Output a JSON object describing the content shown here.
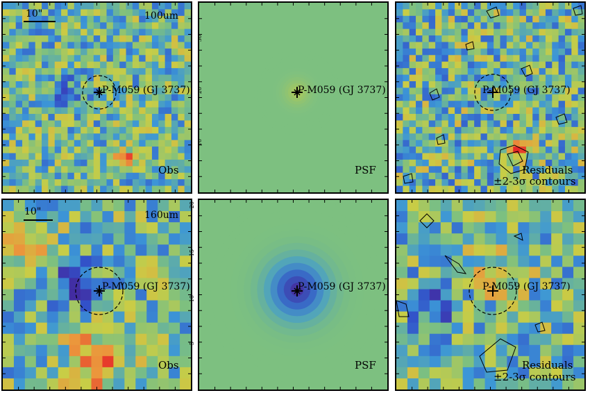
{
  "figure": {
    "source_name": "P-M059 (GJ 3737)",
    "scale_label": "10\"",
    "rows": [
      {
        "band": "100um",
        "panels": [
          {
            "kind": "obs",
            "label": "Obs"
          },
          {
            "kind": "psf",
            "label": "PSF"
          },
          {
            "kind": "residual",
            "label": "Residuals",
            "sublabel": "±2-3σ contours"
          }
        ],
        "y_ticks": [
          "30",
          "20",
          "10"
        ]
      },
      {
        "band": "160um",
        "panels": [
          {
            "kind": "obs",
            "label": "Obs"
          },
          {
            "kind": "psf",
            "label": "PSF"
          },
          {
            "kind": "residual",
            "label": "Residuals",
            "sublabel": "±2-3σ contours"
          }
        ],
        "y_ticks": [
          "20",
          "15",
          "10",
          "5"
        ]
      }
    ]
  },
  "colors": {
    "background": "#7fbf7f",
    "low": "#3b2a8f",
    "mid": "#7fbf7f",
    "high": "#e8332a"
  }
}
